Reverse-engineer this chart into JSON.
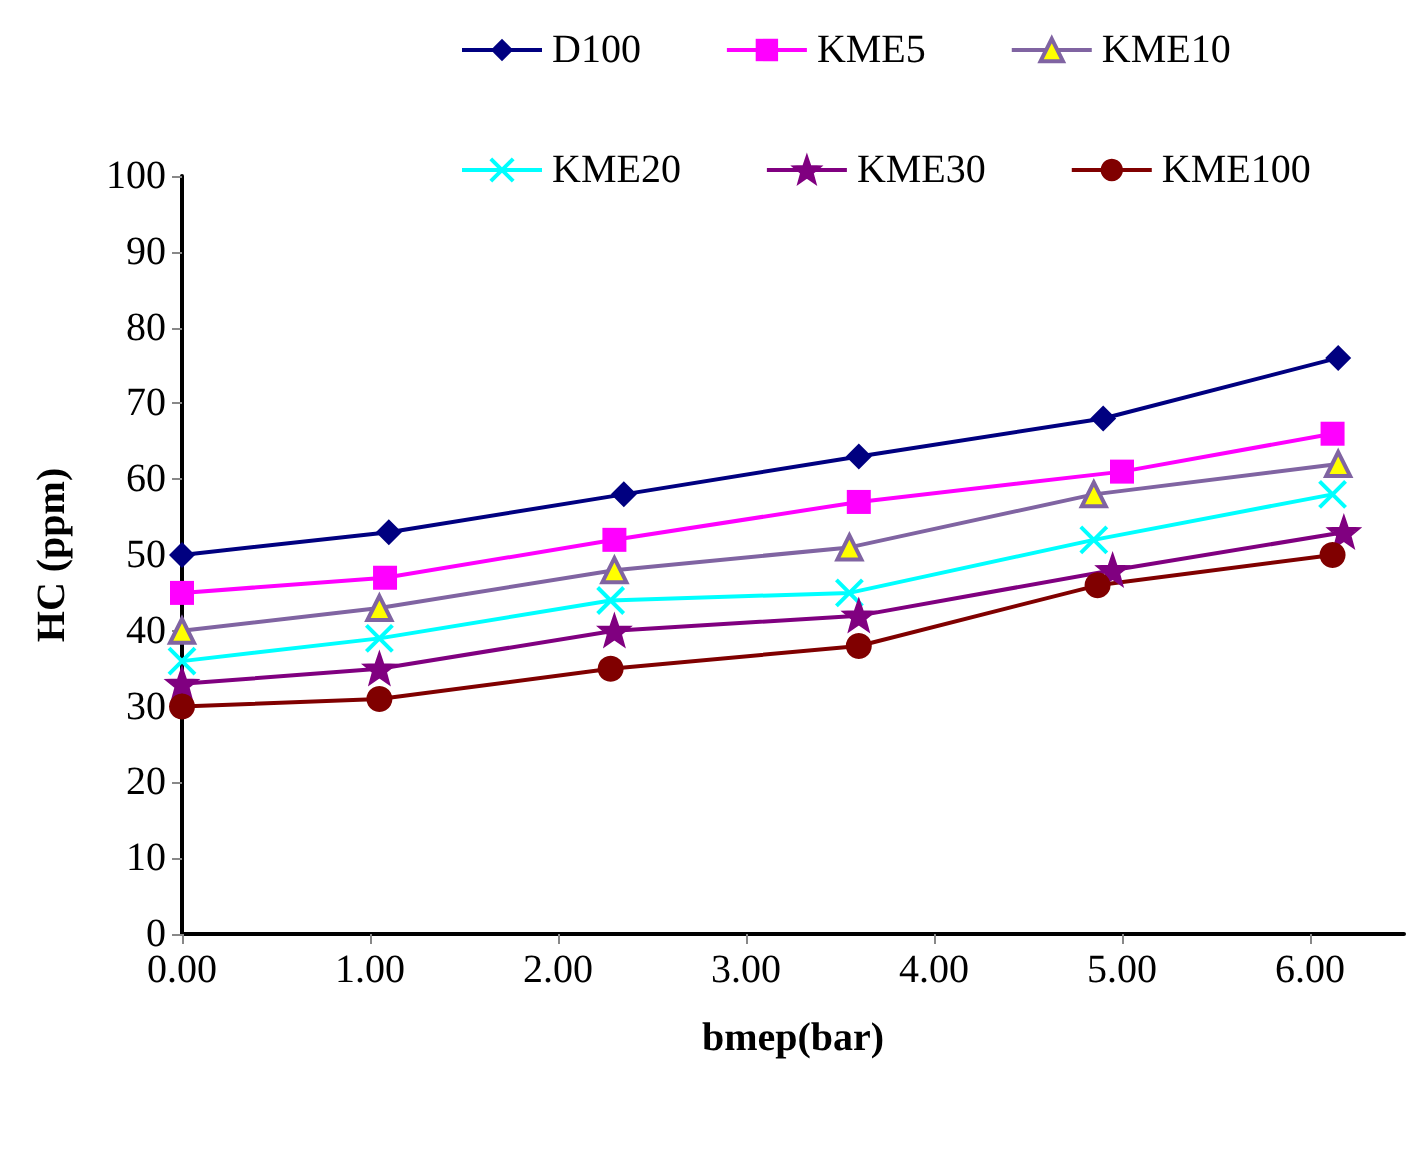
{
  "chart_data": {
    "type": "line",
    "xlabel": "bmep(bar)",
    "ylabel": "HC (ppm)",
    "xlim": [
      0,
      6.5
    ],
    "xticks": [
      {
        "value": 0,
        "label": "0.00"
      },
      {
        "value": 1,
        "label": "1.00"
      },
      {
        "value": 2,
        "label": "2.00"
      },
      {
        "value": 3,
        "label": "3.00"
      },
      {
        "value": 4,
        "label": "4.00"
      },
      {
        "value": 5,
        "label": "5.00"
      },
      {
        "value": 6,
        "label": "6.00"
      }
    ],
    "ylim": [
      0,
      100
    ],
    "yticks": [
      0,
      10,
      20,
      30,
      40,
      50,
      60,
      70,
      80,
      90,
      100
    ],
    "grid": false,
    "legend": "top",
    "line_style": "solid",
    "series": [
      {
        "name": "D100",
        "color": "#000080",
        "marker": "diamond",
        "x": [
          0,
          1.1,
          2.35,
          3.6,
          4.9,
          6.15
        ],
        "values": [
          50,
          53,
          58,
          63,
          68,
          76
        ]
      },
      {
        "name": "KME5",
        "color": "#ff00ff",
        "marker": "square",
        "x": [
          0,
          1.08,
          2.3,
          3.6,
          5.0,
          6.12
        ],
        "values": [
          45,
          47,
          52,
          57,
          61,
          66
        ]
      },
      {
        "name": "KME10",
        "color": "#8064a2",
        "marker": "triangle",
        "x": [
          0,
          1.05,
          2.3,
          3.55,
          4.85,
          6.15
        ],
        "values": [
          40,
          43,
          48,
          51,
          58,
          62
        ]
      },
      {
        "name": "KME20",
        "color": "#00ffff",
        "marker": "cross",
        "x": [
          0,
          1.05,
          2.28,
          3.55,
          4.85,
          6.12
        ],
        "values": [
          36,
          39,
          44,
          45,
          52,
          58
        ]
      },
      {
        "name": "KME30",
        "color": "#800080",
        "marker": "star",
        "x": [
          0,
          1.05,
          2.3,
          3.6,
          4.95,
          6.18
        ],
        "values": [
          33,
          35,
          40,
          42,
          48,
          53
        ]
      },
      {
        "name": "KME100",
        "color": "#800000",
        "marker": "circle",
        "x": [
          0,
          1.05,
          2.28,
          3.6,
          4.87,
          6.12
        ],
        "values": [
          30,
          31,
          35,
          38,
          46,
          50
        ]
      }
    ]
  }
}
